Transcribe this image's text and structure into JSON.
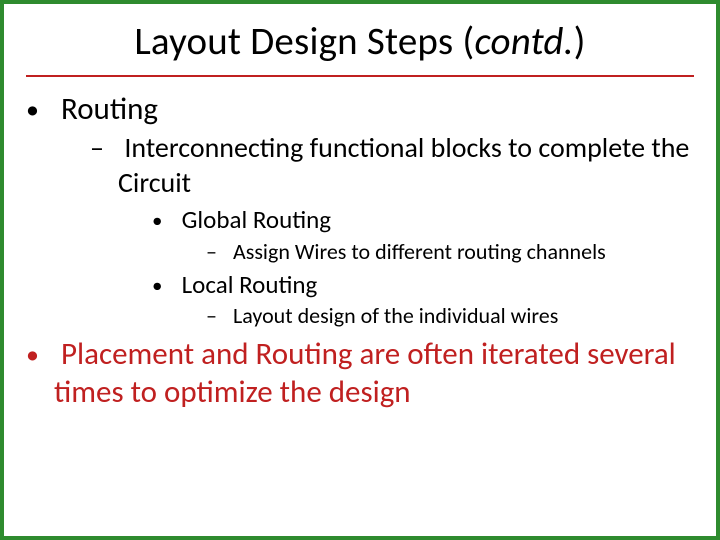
{
  "colors": {
    "border": "#2e8b2e",
    "heading_underline": "#c02020",
    "accent_text": "#c02020",
    "body_text": "#000000",
    "background": "#ffffff"
  },
  "typography": {
    "font_family": "Calibri",
    "title_size_pt": 39,
    "lvl1_size_pt": 31,
    "lvl2_size_pt": 28,
    "lvl3_size_pt": 25,
    "lvl4_size_pt": 22
  },
  "heading": {
    "prefix": "Layout Design Steps (",
    "italic": "contd.",
    "suffix": ")"
  },
  "bullets": {
    "b1": "Routing",
    "b1_1": "Interconnecting functional blocks to complete the Circuit",
    "b1_1_1": "Global Routing",
    "b1_1_1_1": "Assign Wires to different routing channels",
    "b1_1_2": "Local Routing",
    "b1_1_2_1": "Layout design of the individual wires",
    "b2": "Placement and Routing are often iterated several times to optimize the design"
  }
}
